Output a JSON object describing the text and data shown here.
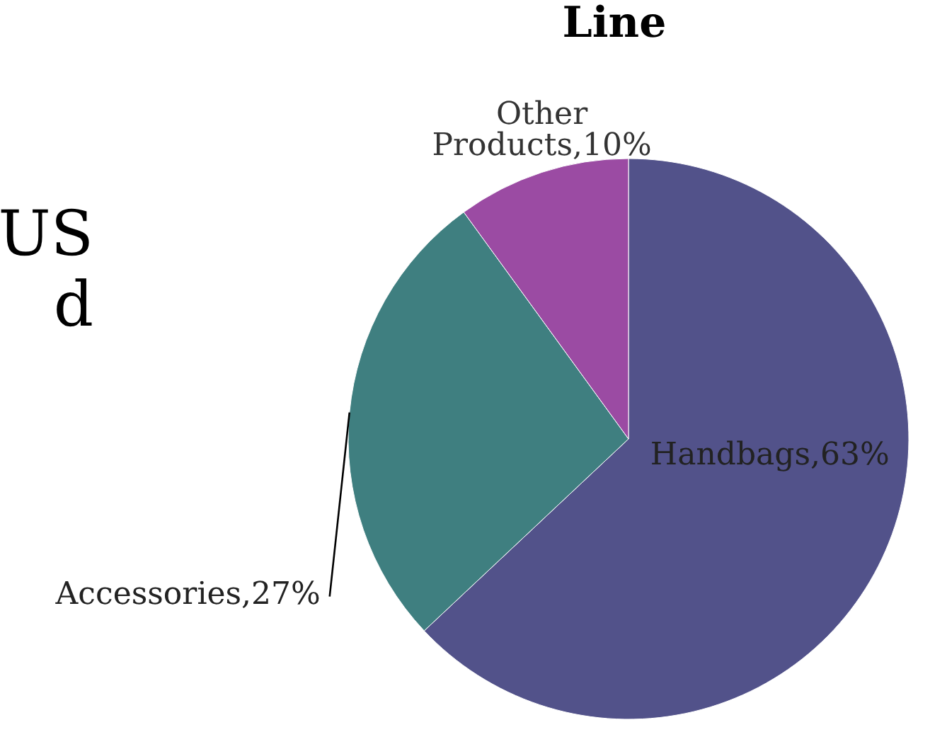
{
  "chart_data": {
    "type": "pie",
    "title": "Line",
    "annotations": [
      "US",
      "d"
    ],
    "categories": [
      "Handbags",
      "Accessories",
      "Other Products"
    ],
    "values": [
      63,
      27,
      10
    ],
    "colors": [
      "#52528a",
      "#3f7f80",
      "#9b4ba3"
    ],
    "value_labels": [
      ",63%",
      ",27%",
      ",10%"
    ]
  }
}
